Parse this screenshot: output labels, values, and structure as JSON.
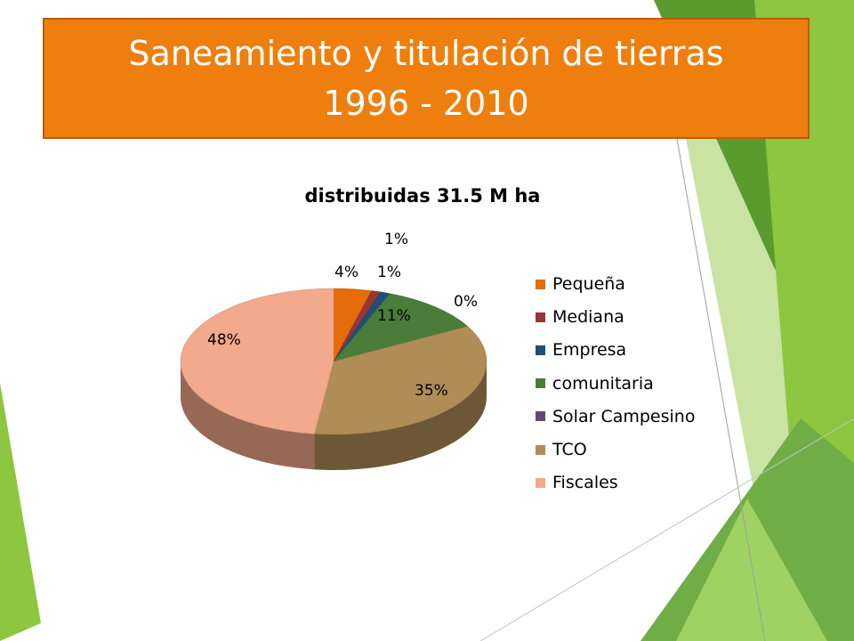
{
  "slide": {
    "title_lines": [
      "Saneamiento y titulación  de tierras",
      "1996 - 2010"
    ]
  },
  "colors": {
    "title_bg": "#ee7f0e",
    "title_text": "#ffffff",
    "decor_green": "#8dc63f",
    "decor_dark_green": "#5a9a2f"
  },
  "chart_data": {
    "type": "pie",
    "title": "distribuidas 31.5 M ha",
    "legend_position": "right",
    "three_d": true,
    "categories": [
      "Pequeña",
      "Mediana",
      "Empresa",
      "comunitaria",
      "Solar Campesino",
      "TCO",
      "Fiscales"
    ],
    "values": [
      4,
      1,
      1,
      11,
      0,
      35,
      48
    ],
    "data_labels": [
      "4%",
      "1%",
      "1%",
      "11%",
      "0%",
      "35%",
      "48%"
    ],
    "colors": [
      "#e46c0a",
      "#953735",
      "#1f4e79",
      "#4a7c3a",
      "#5f497a",
      "#b08d57",
      "#f2a98c"
    ]
  }
}
